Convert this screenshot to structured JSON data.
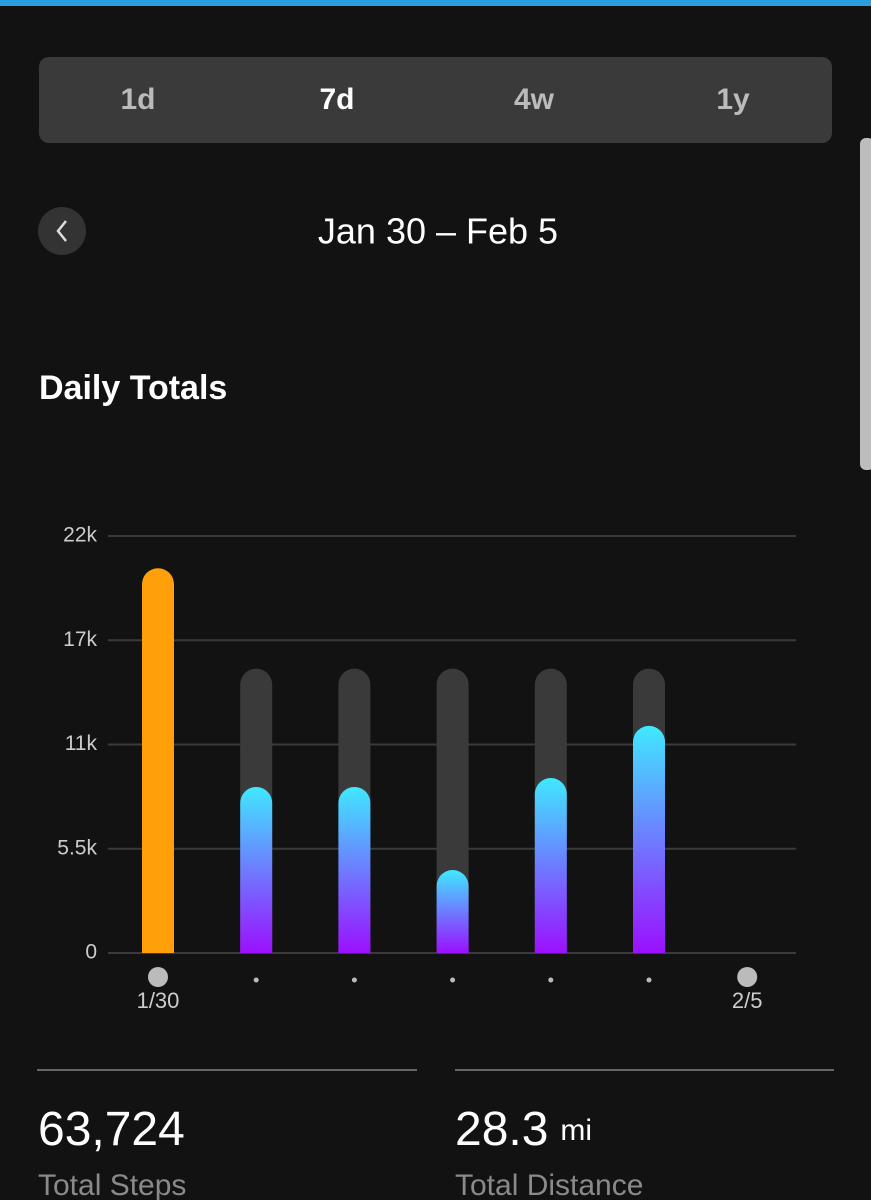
{
  "tabs": {
    "items": [
      "1d",
      "7d",
      "4w",
      "1y"
    ],
    "selected": 1
  },
  "date_range": "Jan 30 – Feb 5",
  "section_title": "Daily Totals",
  "chart_data": {
    "type": "bar",
    "categories": [
      "1/30",
      null,
      null,
      null,
      null,
      null,
      "2/5"
    ],
    "values": [
      20300,
      8760,
      8760,
      4380,
      9230,
      11980,
      null
    ],
    "goal": 15000,
    "met_color": "#ff9f0a",
    "gradient": [
      "#40e8ff",
      "#9b10ff"
    ],
    "track_color": "#3a3a3a",
    "ylim": [
      0,
      22000
    ],
    "yticks": [
      0,
      {
        "value": 5500,
        "label": "5.5k"
      },
      {
        "value": 11000,
        "label": "11k"
      },
      {
        "value": 16500,
        "label": "17k"
      },
      {
        "value": 22000,
        "label": "22k"
      }
    ],
    "grid": true
  },
  "stats": [
    {
      "value": "63,724",
      "label": "Total Steps"
    },
    {
      "value": "28.3",
      "unit": "mi",
      "label": "Total Distance"
    }
  ]
}
